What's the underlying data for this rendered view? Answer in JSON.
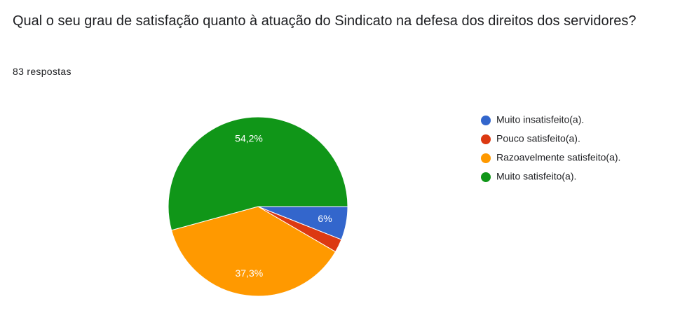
{
  "chart_data": {
    "type": "pie",
    "title": "Qual o seu grau de satisfação quanto à atuação do Sindicato na defesa dos direitos dos servidores?",
    "subtitle": "83 respostas",
    "categories": [
      "Muito insatisfeito(a).",
      "Pouco satisfeito(a).",
      "Razoavelmente satisfeito(a).",
      "Muito satisfeito(a)."
    ],
    "values": [
      6,
      2.4,
      37.3,
      54.2
    ],
    "value_labels": [
      "6%",
      null,
      "37,3%",
      "54,2%"
    ],
    "colors": [
      "#3366cc",
      "#dc3912",
      "#ff9900",
      "#109618"
    ],
    "legend": "right"
  }
}
